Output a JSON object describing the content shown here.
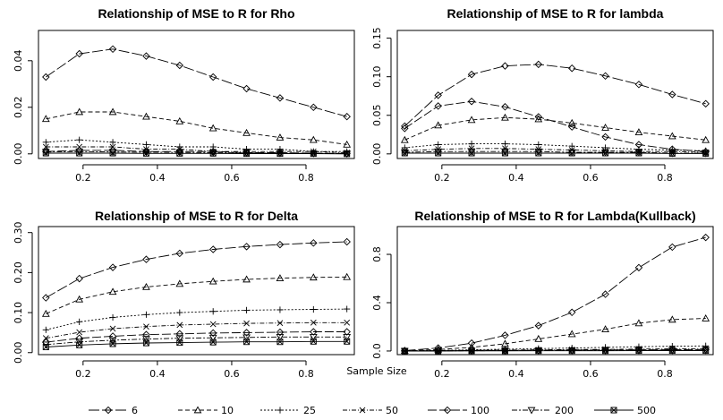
{
  "legend": {
    "title": "Sample Size",
    "items": [
      "6",
      "10",
      "25",
      "50",
      "100",
      "200",
      "500"
    ]
  },
  "series_styles": [
    {
      "name": "6",
      "dash": "12,3",
      "marker": "diamond"
    },
    {
      "name": "10",
      "dash": "5,3",
      "marker": "triangle-up"
    },
    {
      "name": "25",
      "dash": "2,2",
      "marker": "plus"
    },
    {
      "name": "50",
      "dash": "5,2,1,2",
      "marker": "cross"
    },
    {
      "name": "100",
      "dash": "10,3",
      "marker": "diamond"
    },
    {
      "name": "200",
      "dash": "6,2,2,2",
      "marker": "triangle-down"
    },
    {
      "name": "500",
      "dash": "",
      "marker": "square-cross"
    }
  ],
  "chart_data": [
    {
      "type": "line",
      "title": "Relationship of MSE to R for Rho",
      "x": [
        0.1,
        0.19,
        0.28,
        0.37,
        0.46,
        0.55,
        0.64,
        0.73,
        0.82,
        0.91
      ],
      "xticks": [
        "0.2",
        "0.4",
        "0.6",
        "0.8"
      ],
      "xtick_values": [
        0.2,
        0.4,
        0.6,
        0.8
      ],
      "yticks": [
        "0.00",
        "0.02",
        "0.04"
      ],
      "ytick_values": [
        0.0,
        0.02,
        0.04
      ],
      "xlim": [
        0.08,
        0.93
      ],
      "ylim": [
        -0.002,
        0.053
      ],
      "series": [
        {
          "name": "6",
          "values": [
            0.033,
            0.043,
            0.045,
            0.042,
            0.038,
            0.033,
            0.028,
            0.024,
            0.02,
            0.016
          ]
        },
        {
          "name": "10",
          "values": [
            0.015,
            0.018,
            0.018,
            0.016,
            0.014,
            0.011,
            0.009,
            0.007,
            0.006,
            0.004
          ]
        },
        {
          "name": "25",
          "values": [
            0.005,
            0.006,
            0.005,
            0.004,
            0.003,
            0.003,
            0.002,
            0.002,
            0.001,
            0.001
          ]
        },
        {
          "name": "50",
          "values": [
            0.003,
            0.003,
            0.003,
            0.002,
            0.002,
            0.001,
            0.001,
            0.001,
            0.001,
            0.0005
          ]
        },
        {
          "name": "100",
          "values": [
            0.001,
            0.0015,
            0.0015,
            0.001,
            0.001,
            0.001,
            0.0005,
            0.0005,
            0.0003,
            0.0002
          ]
        },
        {
          "name": "200",
          "values": [
            0.0008,
            0.001,
            0.0008,
            0.0007,
            0.0006,
            0.0005,
            0.0004,
            0.0003,
            0.0002,
            0.0001
          ]
        },
        {
          "name": "500",
          "values": [
            0.0003,
            0.0003,
            0.0003,
            0.0002,
            0.0002,
            0.0002,
            0.0001,
            0.0001,
            0.0001,
            0.0
          ]
        }
      ]
    },
    {
      "type": "line",
      "title": "Relationship of MSE to R for lambda",
      "x": [
        0.1,
        0.19,
        0.28,
        0.37,
        0.46,
        0.55,
        0.64,
        0.73,
        0.82,
        0.91
      ],
      "xticks": [
        "0.2",
        "0.4",
        "0.6",
        "0.8"
      ],
      "xtick_values": [
        0.2,
        0.4,
        0.6,
        0.8
      ],
      "yticks": [
        "0.00",
        "0.05",
        "0.10",
        "0.15"
      ],
      "ytick_values": [
        0.0,
        0.05,
        0.1,
        0.15
      ],
      "xlim": [
        0.08,
        0.93
      ],
      "ylim": [
        -0.006,
        0.16
      ],
      "series": [
        {
          "name": "6",
          "values": [
            0.036,
            0.076,
            0.103,
            0.114,
            0.116,
            0.111,
            0.101,
            0.09,
            0.077,
            0.065
          ]
        },
        {
          "name": "10",
          "values": [
            0.018,
            0.037,
            0.044,
            0.047,
            0.045,
            0.04,
            0.034,
            0.028,
            0.023,
            0.018
          ]
        },
        {
          "name": "25",
          "values": [
            0.008,
            0.012,
            0.013,
            0.013,
            0.012,
            0.01,
            0.008,
            0.006,
            0.005,
            0.004
          ]
        },
        {
          "name": "50",
          "values": [
            0.004,
            0.006,
            0.007,
            0.007,
            0.006,
            0.005,
            0.004,
            0.003,
            0.003,
            0.002
          ]
        },
        {
          "name": "100",
          "values": [
            0.033,
            0.062,
            0.068,
            0.061,
            0.048,
            0.035,
            0.022,
            0.012,
            0.006,
            0.003
          ]
        },
        {
          "name": "200",
          "values": [
            0.002,
            0.003,
            0.003,
            0.003,
            0.003,
            0.002,
            0.002,
            0.002,
            0.001,
            0.001
          ]
        },
        {
          "name": "500",
          "values": [
            0.001,
            0.001,
            0.001,
            0.001,
            0.001,
            0.001,
            0.001,
            0.001,
            0.0005,
            0.0005
          ]
        }
      ]
    },
    {
      "type": "line",
      "title": "Relationship of MSE to R for Delta",
      "x": [
        0.1,
        0.19,
        0.28,
        0.37,
        0.46,
        0.55,
        0.64,
        0.73,
        0.82,
        0.91
      ],
      "xticks": [
        "0.2",
        "0.4",
        "0.6",
        "0.8"
      ],
      "xtick_values": [
        0.2,
        0.4,
        0.6,
        0.8
      ],
      "yticks": [
        "0.00",
        "0.10",
        "0.20",
        "0.30"
      ],
      "ytick_values": [
        0.0,
        0.1,
        0.2,
        0.3
      ],
      "xlim": [
        0.08,
        0.93
      ],
      "ylim": [
        -0.005,
        0.315
      ],
      "series": [
        {
          "name": "6",
          "values": [
            0.137,
            0.185,
            0.213,
            0.233,
            0.248,
            0.258,
            0.265,
            0.27,
            0.274,
            0.277
          ]
        },
        {
          "name": "10",
          "values": [
            0.097,
            0.133,
            0.152,
            0.164,
            0.172,
            0.178,
            0.183,
            0.186,
            0.188,
            0.189
          ]
        },
        {
          "name": "25",
          "values": [
            0.057,
            0.077,
            0.088,
            0.095,
            0.1,
            0.103,
            0.106,
            0.107,
            0.108,
            0.109
          ]
        },
        {
          "name": "50",
          "values": [
            0.036,
            0.051,
            0.06,
            0.065,
            0.069,
            0.071,
            0.073,
            0.074,
            0.075,
            0.075
          ]
        },
        {
          "name": "100",
          "values": [
            0.026,
            0.036,
            0.041,
            0.045,
            0.047,
            0.049,
            0.05,
            0.051,
            0.052,
            0.052
          ]
        },
        {
          "name": "200",
          "values": [
            0.02,
            0.027,
            0.031,
            0.034,
            0.036,
            0.037,
            0.038,
            0.039,
            0.039,
            0.039
          ]
        },
        {
          "name": "500",
          "values": [
            0.014,
            0.019,
            0.022,
            0.024,
            0.025,
            0.026,
            0.027,
            0.027,
            0.028,
            0.028
          ]
        }
      ]
    },
    {
      "type": "line",
      "title": "Relationship of MSE to R for Lambda(Kullback)",
      "x": [
        0.1,
        0.19,
        0.28,
        0.37,
        0.46,
        0.55,
        0.64,
        0.73,
        0.82,
        0.91
      ],
      "xticks": [
        "0.2",
        "0.4",
        "0.6",
        "0.8"
      ],
      "xtick_values": [
        0.2,
        0.4,
        0.6,
        0.8
      ],
      "yticks": [
        "0.0",
        "0.4",
        "0.8"
      ],
      "ytick_values": [
        0.0,
        0.4,
        0.8
      ],
      "xlim": [
        0.08,
        0.93
      ],
      "ylim": [
        -0.03,
        1.03
      ],
      "series": [
        {
          "name": "6",
          "values": [
            0.003,
            0.025,
            0.065,
            0.13,
            0.21,
            0.32,
            0.47,
            0.69,
            0.86,
            0.94
          ]
        },
        {
          "name": "10",
          "values": [
            0.002,
            0.012,
            0.03,
            0.06,
            0.1,
            0.14,
            0.18,
            0.23,
            0.26,
            0.27
          ]
        },
        {
          "name": "25",
          "values": [
            0.001,
            0.005,
            0.01,
            0.015,
            0.02,
            0.025,
            0.03,
            0.035,
            0.04,
            0.042
          ]
        },
        {
          "name": "50",
          "values": [
            0.001,
            0.003,
            0.006,
            0.008,
            0.01,
            0.012,
            0.014,
            0.016,
            0.018,
            0.02
          ]
        },
        {
          "name": "100",
          "values": [
            0.0,
            0.002,
            0.004,
            0.005,
            0.007,
            0.008,
            0.009,
            0.01,
            0.011,
            0.012
          ]
        },
        {
          "name": "200",
          "values": [
            0.0,
            0.001,
            0.002,
            0.003,
            0.004,
            0.005,
            0.005,
            0.006,
            0.006,
            0.007
          ]
        },
        {
          "name": "500",
          "values": [
            0.0,
            0.0,
            0.001,
            0.001,
            0.002,
            0.002,
            0.002,
            0.003,
            0.003,
            0.003
          ]
        }
      ]
    }
  ]
}
